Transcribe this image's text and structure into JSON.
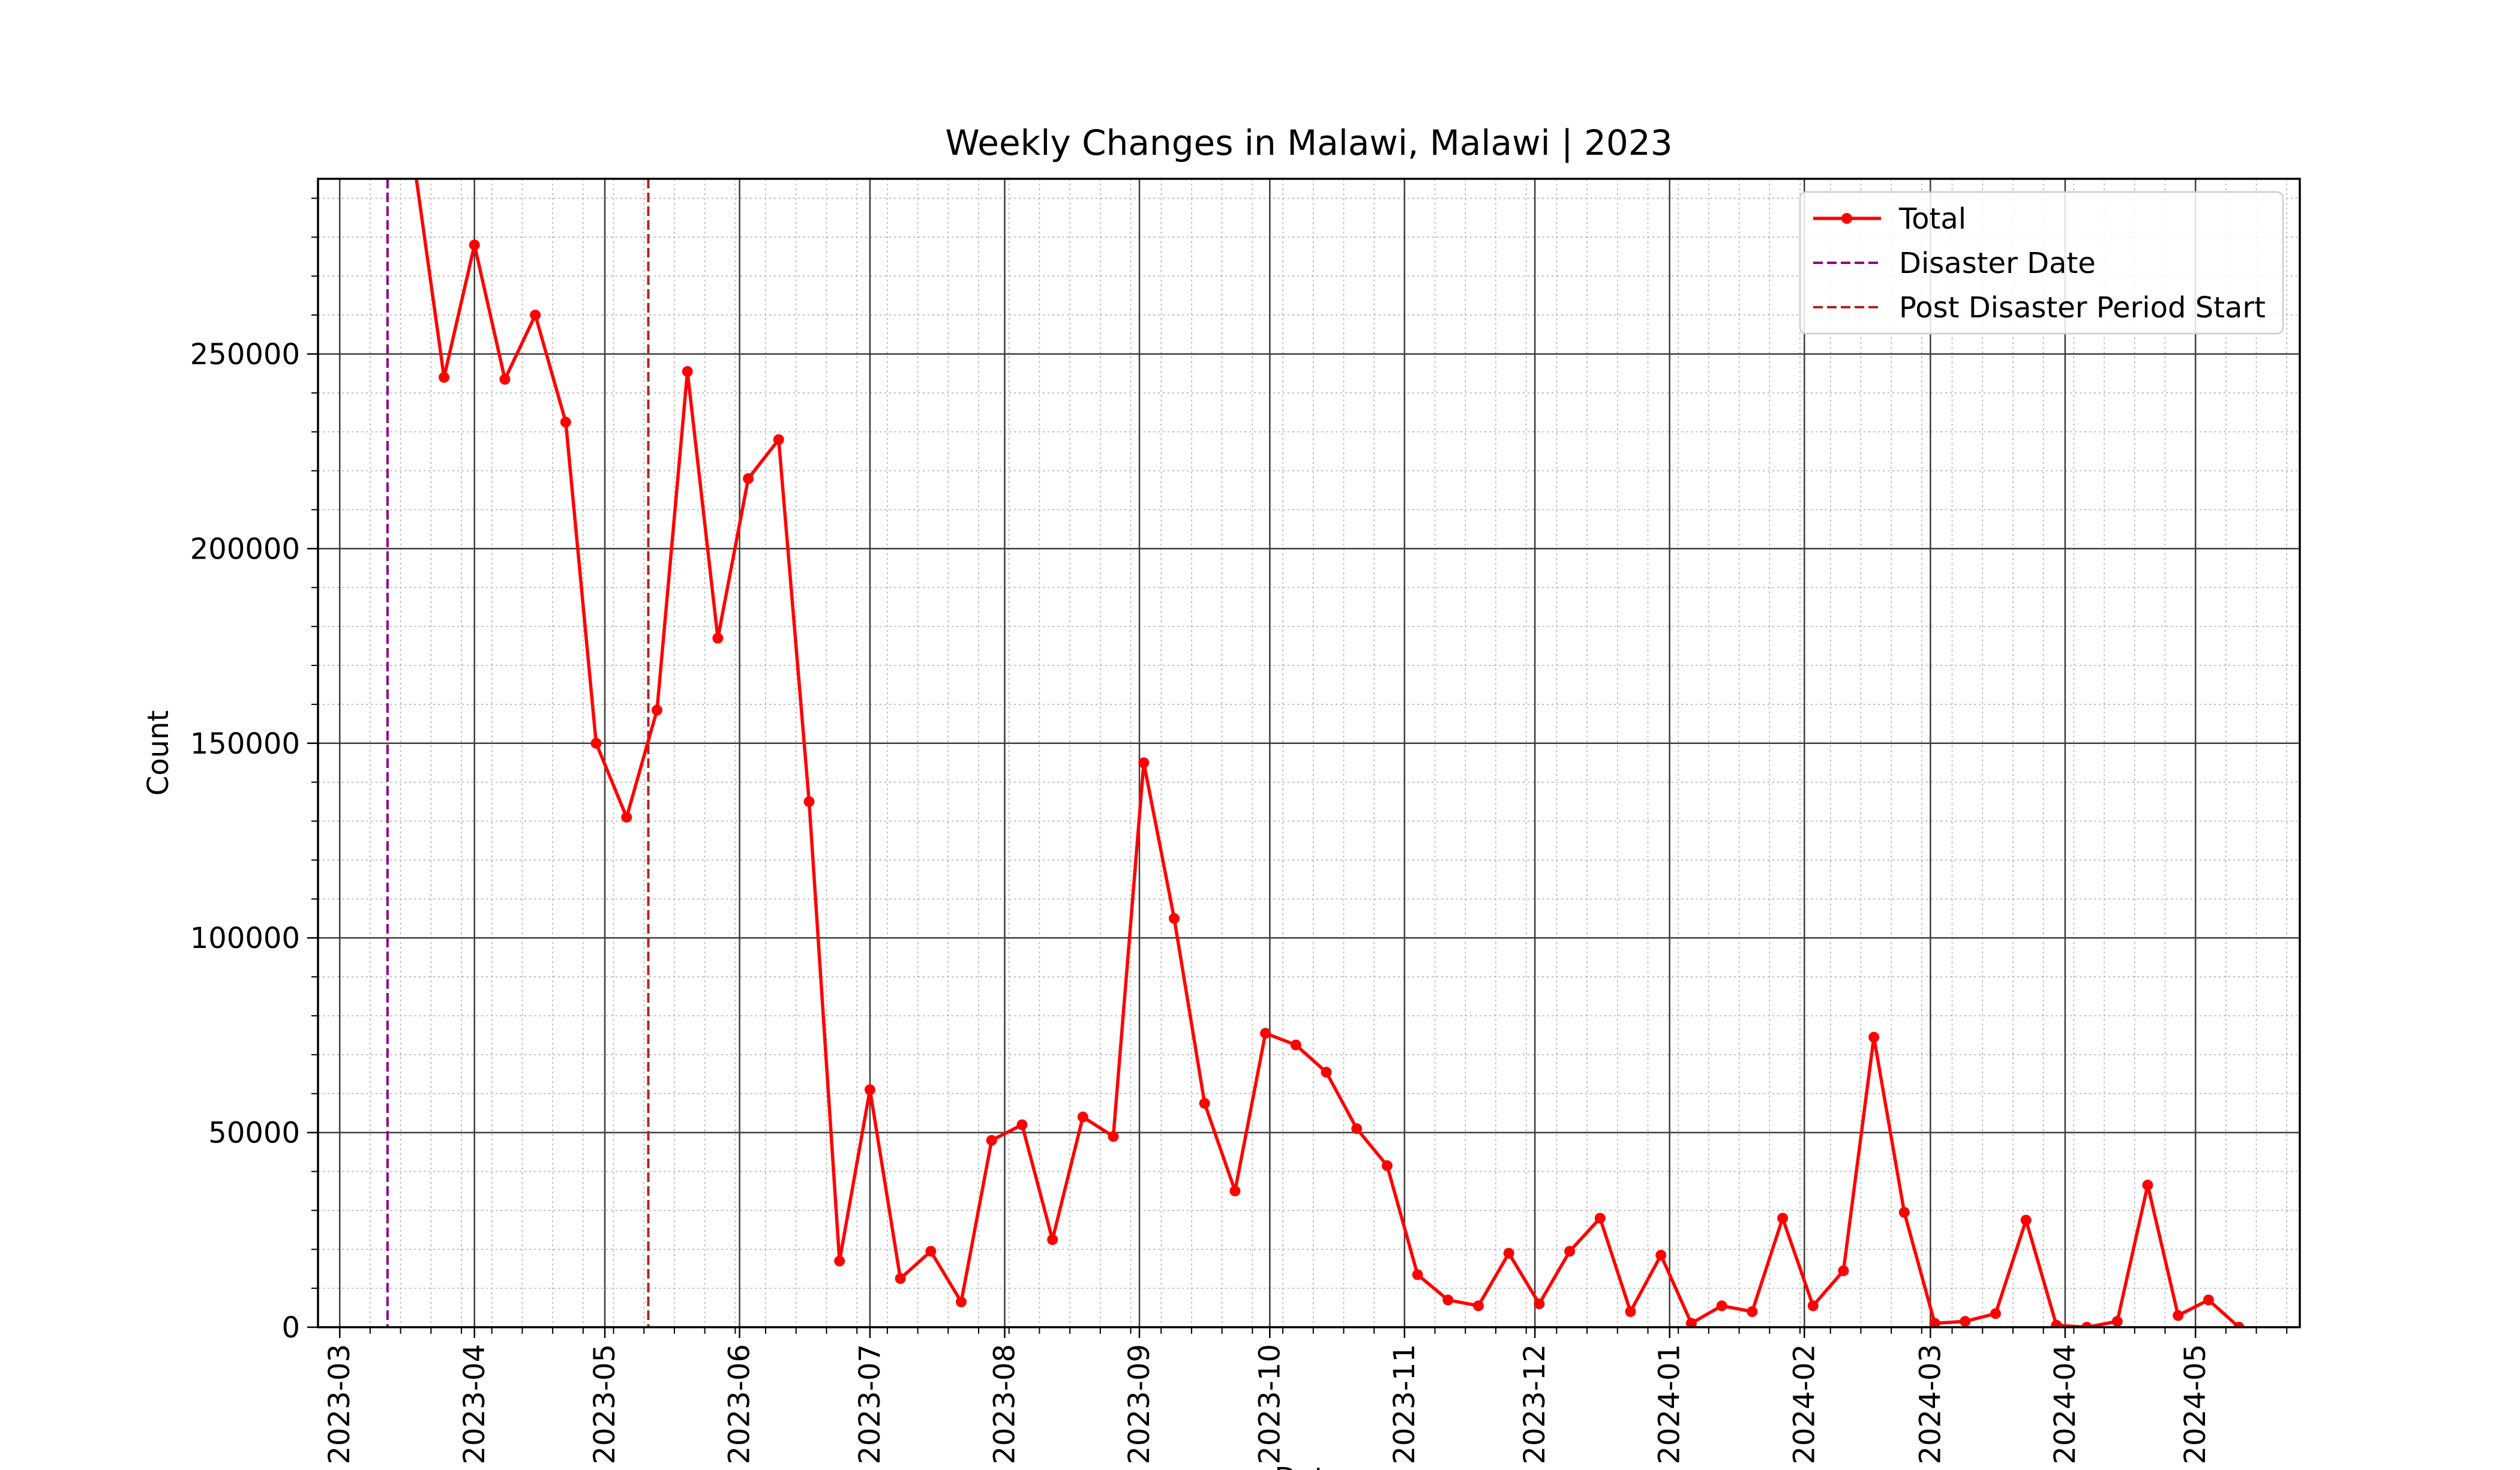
{
  "chart_data": {
    "type": "line",
    "title": "Weekly Changes in Malawi, Malawi | 2023",
    "xlabel": "Date",
    "ylabel": "Count",
    "x_range": [
      "2023-02-24",
      "2024-05-25"
    ],
    "ylim": [
      0,
      295000
    ],
    "x_ticks": [
      "2023-03-01",
      "2023-04-01",
      "2023-05-01",
      "2023-06-01",
      "2023-07-01",
      "2023-08-01",
      "2023-09-01",
      "2023-10-01",
      "2023-11-01",
      "2023-12-01",
      "2024-01-01",
      "2024-02-01",
      "2024-03-01",
      "2024-04-01",
      "2024-05-01"
    ],
    "x_tick_labels": [
      "2023-03",
      "2023-04",
      "2023-05",
      "2023-06",
      "2023-07",
      "2023-08",
      "2023-09",
      "2023-10",
      "2023-11",
      "2023-12",
      "2024-01",
      "2024-02",
      "2024-03",
      "2024-04",
      "2024-05"
    ],
    "y_ticks": [
      0,
      50000,
      100000,
      150000,
      200000,
      250000
    ],
    "y_tick_labels": [
      "0",
      "50000",
      "100000",
      "150000",
      "200000",
      "250000"
    ],
    "grid": true,
    "legend_position": "top-right",
    "series": [
      {
        "name": "Total",
        "color": "#ff0000",
        "marker": "circle",
        "x": [
          "2023-03-18",
          "2023-03-25",
          "2023-04-01",
          "2023-04-08",
          "2023-04-15",
          "2023-04-22",
          "2023-04-29",
          "2023-05-06",
          "2023-05-13",
          "2023-05-20",
          "2023-05-27",
          "2023-06-03",
          "2023-06-10",
          "2023-06-17",
          "2023-06-24",
          "2023-07-01",
          "2023-07-08",
          "2023-07-15",
          "2023-07-22",
          "2023-07-29",
          "2023-08-05",
          "2023-08-12",
          "2023-08-19",
          "2023-08-26",
          "2023-09-02",
          "2023-09-09",
          "2023-09-16",
          "2023-09-23",
          "2023-09-30",
          "2023-10-07",
          "2023-10-14",
          "2023-10-21",
          "2023-10-28",
          "2023-11-04",
          "2023-11-11",
          "2023-11-18",
          "2023-11-25",
          "2023-12-02",
          "2023-12-09",
          "2023-12-16",
          "2023-12-23",
          "2023-12-30",
          "2024-01-06",
          "2024-01-13",
          "2024-01-20",
          "2024-01-27",
          "2024-02-03",
          "2024-02-10",
          "2024-02-17",
          "2024-02-24",
          "2024-03-02",
          "2024-03-09",
          "2024-03-16",
          "2024-03-23",
          "2024-03-30",
          "2024-04-06",
          "2024-04-13",
          "2024-04-20",
          "2024-04-27",
          "2024-05-04",
          "2024-05-11"
        ],
        "values": [
          300000,
          244000,
          278000,
          243500,
          260000,
          232500,
          150000,
          131000,
          158500,
          245500,
          177000,
          218000,
          228000,
          135000,
          17000,
          61000,
          12500,
          19500,
          6500,
          48000,
          52000,
          22500,
          54000,
          49000,
          145000,
          105000,
          57500,
          35000,
          75500,
          72500,
          65500,
          51000,
          41500,
          13500,
          7000,
          5500,
          19000,
          6000,
          19500,
          28000,
          4000,
          18500,
          1000,
          5500,
          4000,
          28000,
          5500,
          14500,
          74500,
          29500,
          1000,
          1500,
          3500,
          27500,
          500,
          0,
          1500,
          36500,
          3000,
          7000,
          0
        ]
      }
    ],
    "vlines": [
      {
        "name": "Disaster Date",
        "x": "2023-03-12",
        "color": "#8b008b",
        "style": "dashed"
      },
      {
        "name": "Post Disaster Period Start",
        "x": "2023-05-11",
        "color": "#b22222",
        "style": "dashed"
      }
    ]
  }
}
